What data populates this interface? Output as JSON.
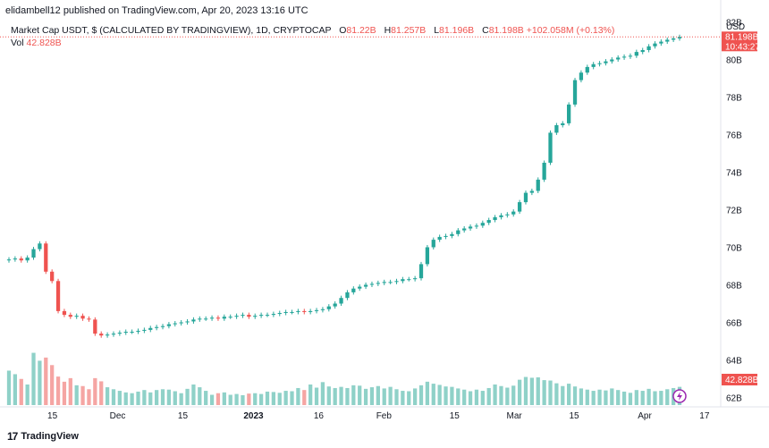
{
  "header": {
    "text": "elidambell12 published on TradingView.com, Apr 20, 2023 13:16 UTC"
  },
  "legend": {
    "title": "Market Cap USDT, $ (CALCULATED BY TRADINGVIEW), 1D, CRYPTOCAP",
    "o_label": "O",
    "o_value": "81.22B",
    "h_label": "H",
    "h_value": "81.257B",
    "l_label": "L",
    "l_value": "81.196B",
    "c_label": "C",
    "c_value": "81.198B",
    "change": "+102.058M (+0.13%)",
    "vol_label": "Vol",
    "vol_value": "42.828B"
  },
  "footer": {
    "brand": "TradingView"
  },
  "chart_data": {
    "type": "candlestick",
    "currency": "USD",
    "y_range": [
      61.5,
      82.5
    ],
    "y_ticks": [
      "62B",
      "64B",
      "66B",
      "68B",
      "70B",
      "72B",
      "74B",
      "76B",
      "78B",
      "80B",
      "82B"
    ],
    "x_ticks": [
      "15",
      "Dec",
      "15",
      "2023",
      "16",
      "Feb",
      "15",
      "Mar",
      "15",
      "Apr",
      "17"
    ],
    "last_price": "81.198B",
    "countdown": "10:43:27",
    "last_volume": "42.828B",
    "colors": {
      "up": "#26a69a",
      "down": "#ef5350",
      "vol_up": "#8fd1c8",
      "vol_down": "#f5a5a3"
    },
    "closes": [
      69.35,
      69.4,
      69.3,
      69.45,
      69.9,
      70.2,
      68.7,
      68.2,
      66.6,
      66.4,
      66.3,
      66.35,
      66.2,
      66.15,
      65.4,
      65.3,
      65.35,
      65.4,
      65.45,
      65.5,
      65.5,
      65.55,
      65.6,
      65.7,
      65.75,
      65.8,
      65.9,
      65.95,
      66.0,
      66.05,
      66.15,
      66.2,
      66.2,
      66.25,
      66.2,
      66.3,
      66.3,
      66.35,
      66.4,
      66.3,
      66.35,
      66.4,
      66.4,
      66.45,
      66.5,
      66.55,
      66.55,
      66.6,
      66.55,
      66.6,
      66.65,
      66.7,
      66.85,
      67.0,
      67.3,
      67.6,
      67.8,
      67.9,
      68.0,
      68.05,
      68.1,
      68.15,
      68.15,
      68.2,
      68.3,
      68.3,
      68.35,
      69.1,
      70.0,
      70.4,
      70.55,
      70.6,
      70.7,
      70.9,
      71.0,
      71.1,
      71.15,
      71.3,
      71.45,
      71.6,
      71.7,
      71.75,
      71.9,
      72.4,
      72.9,
      73.0,
      73.6,
      74.5,
      76.1,
      76.5,
      76.6,
      77.6,
      78.9,
      79.3,
      79.6,
      79.75,
      79.8,
      79.9,
      80.0,
      80.1,
      80.15,
      80.2,
      80.4,
      80.5,
      80.7,
      80.85,
      80.95,
      81.05,
      81.12,
      81.2
    ],
    "volumes": [
      8.7,
      7.8,
      6.6,
      5.2,
      13.2,
      11.2,
      12.0,
      10.1,
      7.2,
      5.9,
      6.8,
      5.0,
      4.8,
      4.0,
      6.8,
      6.0,
      4.5,
      4.0,
      3.6,
      3.2,
      3.0,
      3.4,
      3.8,
      3.2,
      3.8,
      4.0,
      3.9,
      3.5,
      3.0,
      4.1,
      5.2,
      4.5,
      3.6,
      2.6,
      3.0,
      3.2,
      2.6,
      2.8,
      2.5,
      2.9,
      3.0,
      2.8,
      3.4,
      3.3,
      3.1,
      3.6,
      3.5,
      4.3,
      3.8,
      5.2,
      4.4,
      5.8,
      4.7,
      4.3,
      4.6,
      4.3,
      5.0,
      4.9,
      4.1,
      4.5,
      4.8,
      4.2,
      4.6,
      4.0,
      3.6,
      3.5,
      4.2,
      5.0,
      5.9,
      5.4,
      5.1,
      4.7,
      4.6,
      4.2,
      3.9,
      3.5,
      3.9,
      3.6,
      4.3,
      5.2,
      4.8,
      4.4,
      4.9,
      6.4,
      7.1,
      6.9,
      7.0,
      6.3,
      6.2,
      5.5,
      4.8,
      5.4,
      4.7,
      4.2,
      3.9,
      3.6,
      3.9,
      3.7,
      4.2,
      3.8,
      3.4,
      3.1,
      3.8,
      3.6,
      4.1,
      3.5,
      3.6,
      4.0,
      4.3,
      4.6
    ]
  }
}
